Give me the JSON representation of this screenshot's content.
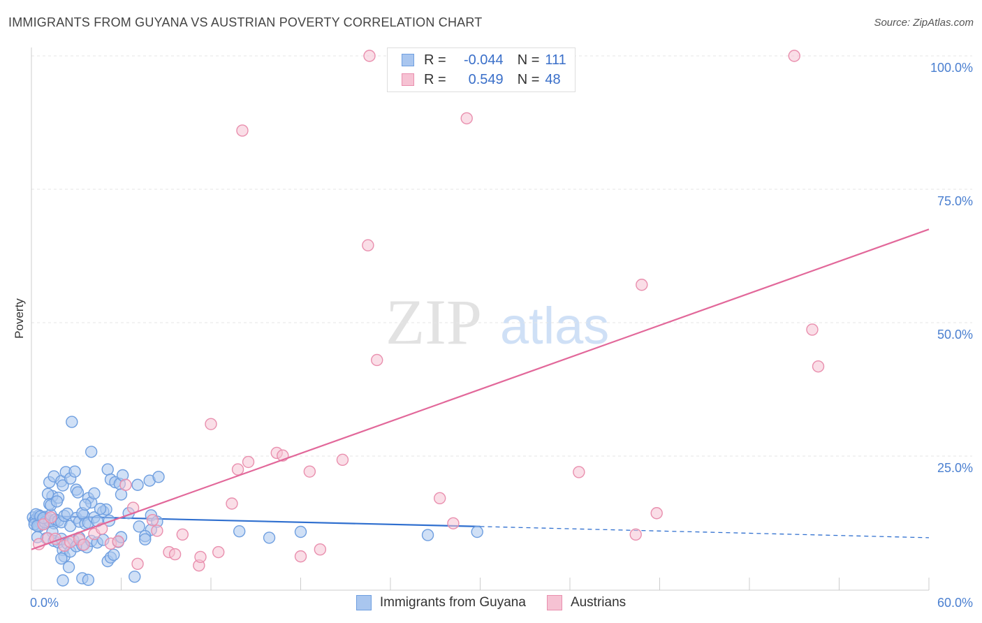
{
  "title": "IMMIGRANTS FROM GUYANA VS AUSTRIAN POVERTY CORRELATION CHART",
  "source": "Source: ZipAtlas.com",
  "watermark": {
    "zip": "ZIP",
    "atlas": "atlas"
  },
  "legend": {
    "rows": [
      {
        "r_label": "R =",
        "r_value": "-0.044",
        "n_label": "N =",
        "n_value": "111"
      },
      {
        "r_label": "R =",
        "r_value": "0.549",
        "n_label": "N =",
        "n_value": "48"
      }
    ]
  },
  "chart_data": {
    "type": "scatter",
    "title": "IMMIGRANTS FROM GUYANA VS AUSTRIAN POVERTY CORRELATION CHART",
    "xlabel": "",
    "ylabel": "Poverty",
    "xlim": [
      0,
      60
    ],
    "ylim": [
      0,
      100
    ],
    "x_tick_labels": [
      "0.0%",
      "60.0%"
    ],
    "y_ticks": [
      {
        "value": 100,
        "label": "100.0%"
      },
      {
        "value": 75,
        "label": "75.0%"
      },
      {
        "value": 50,
        "label": "50.0%"
      },
      {
        "value": 25,
        "label": "25.0%"
      }
    ],
    "grid": true,
    "legend_position": "bottom-center",
    "series": [
      {
        "name": "Immigrants from Guyana",
        "color": "#6f9fe0",
        "fill": "#a9c6ef",
        "line_color": "#2f6fcf",
        "trend": {
          "x0": 0,
          "y0": 13.8,
          "x1": 30,
          "y1": 11.8,
          "dash_x1": 60,
          "dash_y1": 9.7
        },
        "points": [
          [
            0.1,
            13.5
          ],
          [
            0.2,
            12.8
          ],
          [
            0.3,
            13.2
          ],
          [
            0.4,
            12.1
          ],
          [
            0.5,
            13.9
          ],
          [
            0.6,
            12.5
          ],
          [
            0.7,
            13.0
          ],
          [
            0.8,
            12.3
          ],
          [
            0.9,
            13.6
          ],
          [
            1.0,
            12.7
          ],
          [
            0.3,
            14.1
          ],
          [
            0.5,
            11.8
          ],
          [
            0.7,
            12.9
          ],
          [
            1.1,
            13.3
          ],
          [
            0.2,
            12.2
          ],
          [
            0.6,
            13.7
          ],
          [
            0.4,
            11.9
          ],
          [
            0.9,
            12.6
          ],
          [
            1.2,
            12.8
          ],
          [
            0.8,
            13.4
          ],
          [
            1.3,
            14.0
          ],
          [
            1.5,
            12.4
          ],
          [
            1.4,
            10.8
          ],
          [
            1.0,
            9.6
          ],
          [
            1.6,
            13.1
          ],
          [
            1.8,
            12.9
          ],
          [
            2.0,
            12.6
          ],
          [
            2.2,
            13.8
          ],
          [
            2.4,
            14.2
          ],
          [
            2.6,
            11.9
          ],
          [
            3.0,
            13.4
          ],
          [
            3.2,
            12.7
          ],
          [
            3.5,
            13.9
          ],
          [
            3.6,
            12.3
          ],
          [
            3.8,
            12.5
          ],
          [
            4.2,
            13.5
          ],
          [
            4.4,
            12.8
          ],
          [
            4.8,
            14.6
          ],
          [
            5.0,
            15.0
          ],
          [
            5.2,
            12.9
          ],
          [
            1.2,
            20.1
          ],
          [
            1.5,
            21.2
          ],
          [
            1.4,
            17.5
          ],
          [
            1.1,
            17.9
          ],
          [
            1.2,
            16.0
          ],
          [
            1.3,
            15.8
          ],
          [
            1.8,
            17.2
          ],
          [
            2.0,
            20.3
          ],
          [
            2.1,
            19.5
          ],
          [
            2.3,
            22.0
          ],
          [
            2.6,
            20.8
          ],
          [
            2.9,
            22.1
          ],
          [
            3.0,
            18.7
          ],
          [
            3.1,
            18.2
          ],
          [
            3.4,
            14.3
          ],
          [
            3.8,
            17.1
          ],
          [
            4.0,
            16.3
          ],
          [
            4.2,
            18.0
          ],
          [
            4.6,
            15.1
          ],
          [
            5.1,
            22.5
          ],
          [
            5.3,
            20.6
          ],
          [
            5.6,
            20.1
          ],
          [
            5.9,
            19.8
          ],
          [
            6.1,
            21.4
          ],
          [
            6.0,
            17.8
          ],
          [
            6.5,
            14.3
          ],
          [
            7.1,
            19.6
          ],
          [
            7.9,
            20.4
          ],
          [
            8.0,
            13.9
          ],
          [
            8.5,
            21.1
          ],
          [
            7.2,
            11.8
          ],
          [
            8.0,
            11.2
          ],
          [
            7.6,
            10.0
          ],
          [
            2.7,
            31.4
          ],
          [
            4.0,
            25.8
          ],
          [
            1.5,
            9.1
          ],
          [
            1.8,
            8.8
          ],
          [
            2.0,
            9.5
          ],
          [
            2.1,
            7.4
          ],
          [
            2.2,
            6.2
          ],
          [
            2.4,
            8.6
          ],
          [
            2.6,
            7.1
          ],
          [
            2.8,
            9.2
          ],
          [
            3.0,
            8.1
          ],
          [
            3.2,
            9.7
          ],
          [
            3.4,
            8.3
          ],
          [
            3.7,
            7.9
          ],
          [
            4.0,
            9.1
          ],
          [
            4.4,
            8.8
          ],
          [
            4.8,
            9.3
          ],
          [
            5.1,
            5.3
          ],
          [
            5.3,
            6.0
          ],
          [
            5.5,
            6.5
          ],
          [
            5.8,
            8.9
          ],
          [
            6.0,
            9.8
          ],
          [
            2.0,
            5.8
          ],
          [
            2.5,
            4.2
          ],
          [
            3.4,
            2.1
          ],
          [
            3.8,
            1.8
          ],
          [
            2.1,
            1.7
          ],
          [
            6.9,
            2.4
          ],
          [
            7.6,
            9.4
          ],
          [
            8.4,
            12.7
          ],
          [
            13.9,
            10.9
          ],
          [
            15.9,
            9.7
          ],
          [
            18.0,
            10.8
          ],
          [
            26.5,
            10.2
          ],
          [
            29.8,
            10.8
          ],
          [
            1.7,
            16.5
          ],
          [
            3.6,
            15.9
          ],
          [
            0.4,
            9.8
          ]
        ]
      },
      {
        "name": "Austrians",
        "color": "#e98fae",
        "fill": "#f6c2d3",
        "line_color": "#e2689a",
        "trend": {
          "x0": 0,
          "y0": 7.5,
          "x1": 60,
          "y1": 67.5
        },
        "points": [
          [
            0.5,
            8.5
          ],
          [
            1.1,
            9.6
          ],
          [
            1.6,
            9.5
          ],
          [
            2.2,
            8.2
          ],
          [
            2.6,
            8.9
          ],
          [
            3.2,
            9.4
          ],
          [
            3.5,
            8.4
          ],
          [
            4.2,
            10.4
          ],
          [
            4.7,
            11.4
          ],
          [
            5.3,
            8.6
          ],
          [
            5.8,
            9.0
          ],
          [
            6.3,
            19.6
          ],
          [
            6.8,
            15.3
          ],
          [
            7.1,
            4.8
          ],
          [
            8.1,
            13.0
          ],
          [
            8.4,
            11.0
          ],
          [
            9.2,
            7.0
          ],
          [
            9.6,
            6.6
          ],
          [
            10.1,
            10.3
          ],
          [
            11.2,
            4.5
          ],
          [
            11.3,
            6.1
          ],
          [
            12.0,
            31.0
          ],
          [
            12.5,
            7.0
          ],
          [
            13.4,
            16.1
          ],
          [
            13.8,
            22.5
          ],
          [
            14.5,
            23.9
          ],
          [
            16.4,
            25.6
          ],
          [
            16.8,
            25.1
          ],
          [
            18.0,
            6.2
          ],
          [
            18.6,
            22.1
          ],
          [
            19.3,
            7.5
          ],
          [
            20.8,
            24.3
          ],
          [
            22.5,
            64.5
          ],
          [
            23.1,
            43.0
          ],
          [
            22.6,
            100.0
          ],
          [
            14.1,
            86.0
          ],
          [
            29.1,
            88.3
          ],
          [
            28.2,
            12.4
          ],
          [
            27.3,
            17.1
          ],
          [
            36.6,
            22.0
          ],
          [
            40.4,
            10.3
          ],
          [
            40.8,
            57.1
          ],
          [
            41.8,
            14.3
          ],
          [
            51.0,
            100.0
          ],
          [
            52.2,
            48.7
          ],
          [
            52.6,
            41.8
          ],
          [
            0.8,
            12.2
          ],
          [
            1.3,
            13.5
          ]
        ]
      }
    ]
  }
}
